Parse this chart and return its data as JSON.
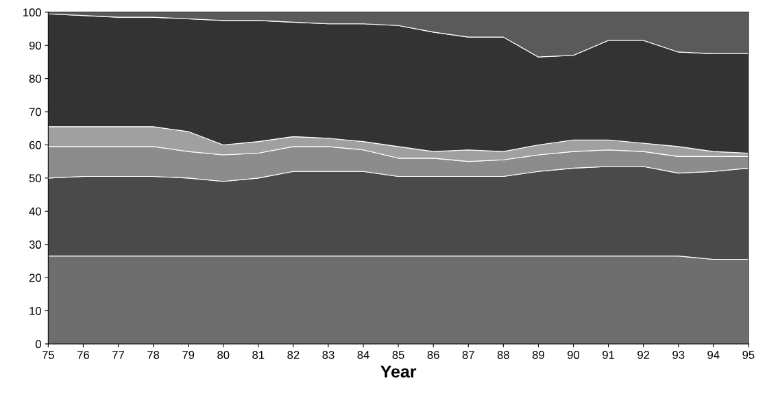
{
  "chart_data": {
    "type": "area",
    "stacked": true,
    "xlabel": "Year",
    "x": [
      75,
      76,
      77,
      78,
      79,
      80,
      81,
      82,
      83,
      84,
      85,
      86,
      87,
      88,
      89,
      90,
      91,
      92,
      93,
      94,
      95
    ],
    "series": [
      {
        "color": "#6e6e6e",
        "values": [
          26.5,
          26.5,
          26.5,
          26.5,
          26.5,
          26.5,
          26.5,
          26.5,
          26.5,
          26.5,
          26.5,
          26.5,
          26.5,
          26.5,
          26.5,
          26.5,
          26.5,
          26.5,
          26.5,
          25.5,
          25.5
        ]
      },
      {
        "color": "#4a4a4a",
        "values": [
          23.5,
          24,
          24,
          24,
          23.5,
          22.5,
          23.5,
          25.5,
          25.5,
          25.5,
          24,
          24,
          24,
          24,
          25.5,
          26.5,
          27,
          27,
          25,
          26.5,
          27.5
        ]
      },
      {
        "color": "#8c8c8c",
        "values": [
          9.5,
          9,
          9,
          9,
          8,
          8,
          7.5,
          7.5,
          7.5,
          6.5,
          5.5,
          5.5,
          4.5,
          5,
          5,
          5,
          5,
          4.5,
          5,
          4.5,
          3.5
        ]
      },
      {
        "color": "#a0a0a0",
        "values": [
          6,
          6,
          6,
          6,
          6,
          3,
          3.5,
          3,
          2.5,
          2.5,
          3.5,
          2,
          3.5,
          2.5,
          3,
          3.5,
          3,
          2.5,
          3,
          1.5,
          1
        ]
      },
      {
        "color": "#333333",
        "values": [
          34,
          33.5,
          33,
          33,
          34,
          37.5,
          36.5,
          34.5,
          34.5,
          35.5,
          36.5,
          36,
          34,
          34.5,
          26.5,
          25.5,
          30,
          31,
          28.5,
          29.5,
          30
        ]
      },
      {
        "color": "#5a5a5a",
        "values": [
          0.5,
          1,
          1.5,
          1.5,
          2,
          2.5,
          2.5,
          3,
          3.5,
          3.5,
          4,
          6,
          7.5,
          7.5,
          13.5,
          13,
          8.5,
          8.5,
          12,
          12.5,
          12.5
        ]
      }
    ],
    "xlim": [
      75,
      95
    ],
    "xticks": [
      75,
      76,
      77,
      78,
      79,
      80,
      81,
      82,
      83,
      84,
      85,
      86,
      87,
      88,
      89,
      90,
      91,
      92,
      93,
      94,
      95
    ],
    "ylim": [
      0,
      100
    ],
    "yticks": [
      0,
      10,
      20,
      30,
      40,
      50,
      60,
      70,
      80,
      90,
      100
    ],
    "grid": false
  }
}
